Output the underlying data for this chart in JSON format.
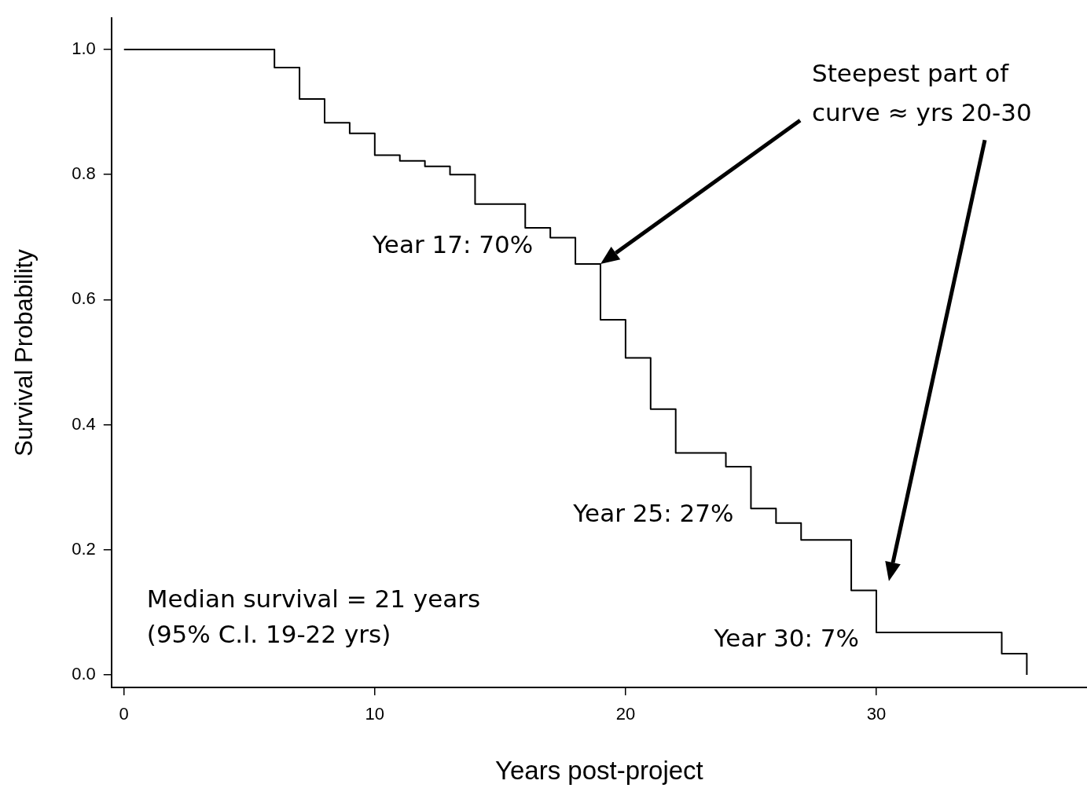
{
  "chart_data": {
    "type": "step",
    "xlabel": "Years post-project",
    "ylabel": "Survival Probability",
    "x": [
      0,
      6,
      7,
      8,
      9,
      10,
      11,
      12,
      13,
      14,
      16,
      17,
      18,
      19,
      20,
      21,
      22,
      24,
      25,
      26,
      27,
      29,
      30,
      35,
      36
    ],
    "series": [
      {
        "color": "#000000",
        "values": [
          1.0,
          0.971,
          0.921,
          0.883,
          0.866,
          0.831,
          0.822,
          0.813,
          0.8,
          0.753,
          0.715,
          0.699,
          0.657,
          0.568,
          0.507,
          0.425,
          0.355,
          0.333,
          0.266,
          0.243,
          0.216,
          0.135,
          0.068,
          0.034,
          0.0
        ]
      }
    ],
    "xlim": [
      -0.5,
      38.4
    ],
    "ylim": [
      -0.02,
      1.05
    ],
    "xticks": [
      0,
      10,
      20,
      30
    ],
    "yticks": [
      {
        "value": 0,
        "label": "0.0"
      },
      0.2,
      0.4,
      0.6,
      0.8,
      {
        "value": 1,
        "label": "1.0"
      }
    ],
    "grid": false,
    "legend": false,
    "marker": "none",
    "line_style": "solid",
    "annotations": [
      {
        "text": "Year 17: 70%",
        "x": 17,
        "y": 0.7
      },
      {
        "text": "Year 25: 27%",
        "x": 25,
        "y": 0.27
      },
      {
        "text": "Year 30: 7%",
        "x": 30,
        "y": 0.07
      },
      "Median survival = 21 years\n(95% C.I. 19-22 yrs)",
      "Steepest part of\ncurve ≈ yrs 20-30"
    ]
  }
}
